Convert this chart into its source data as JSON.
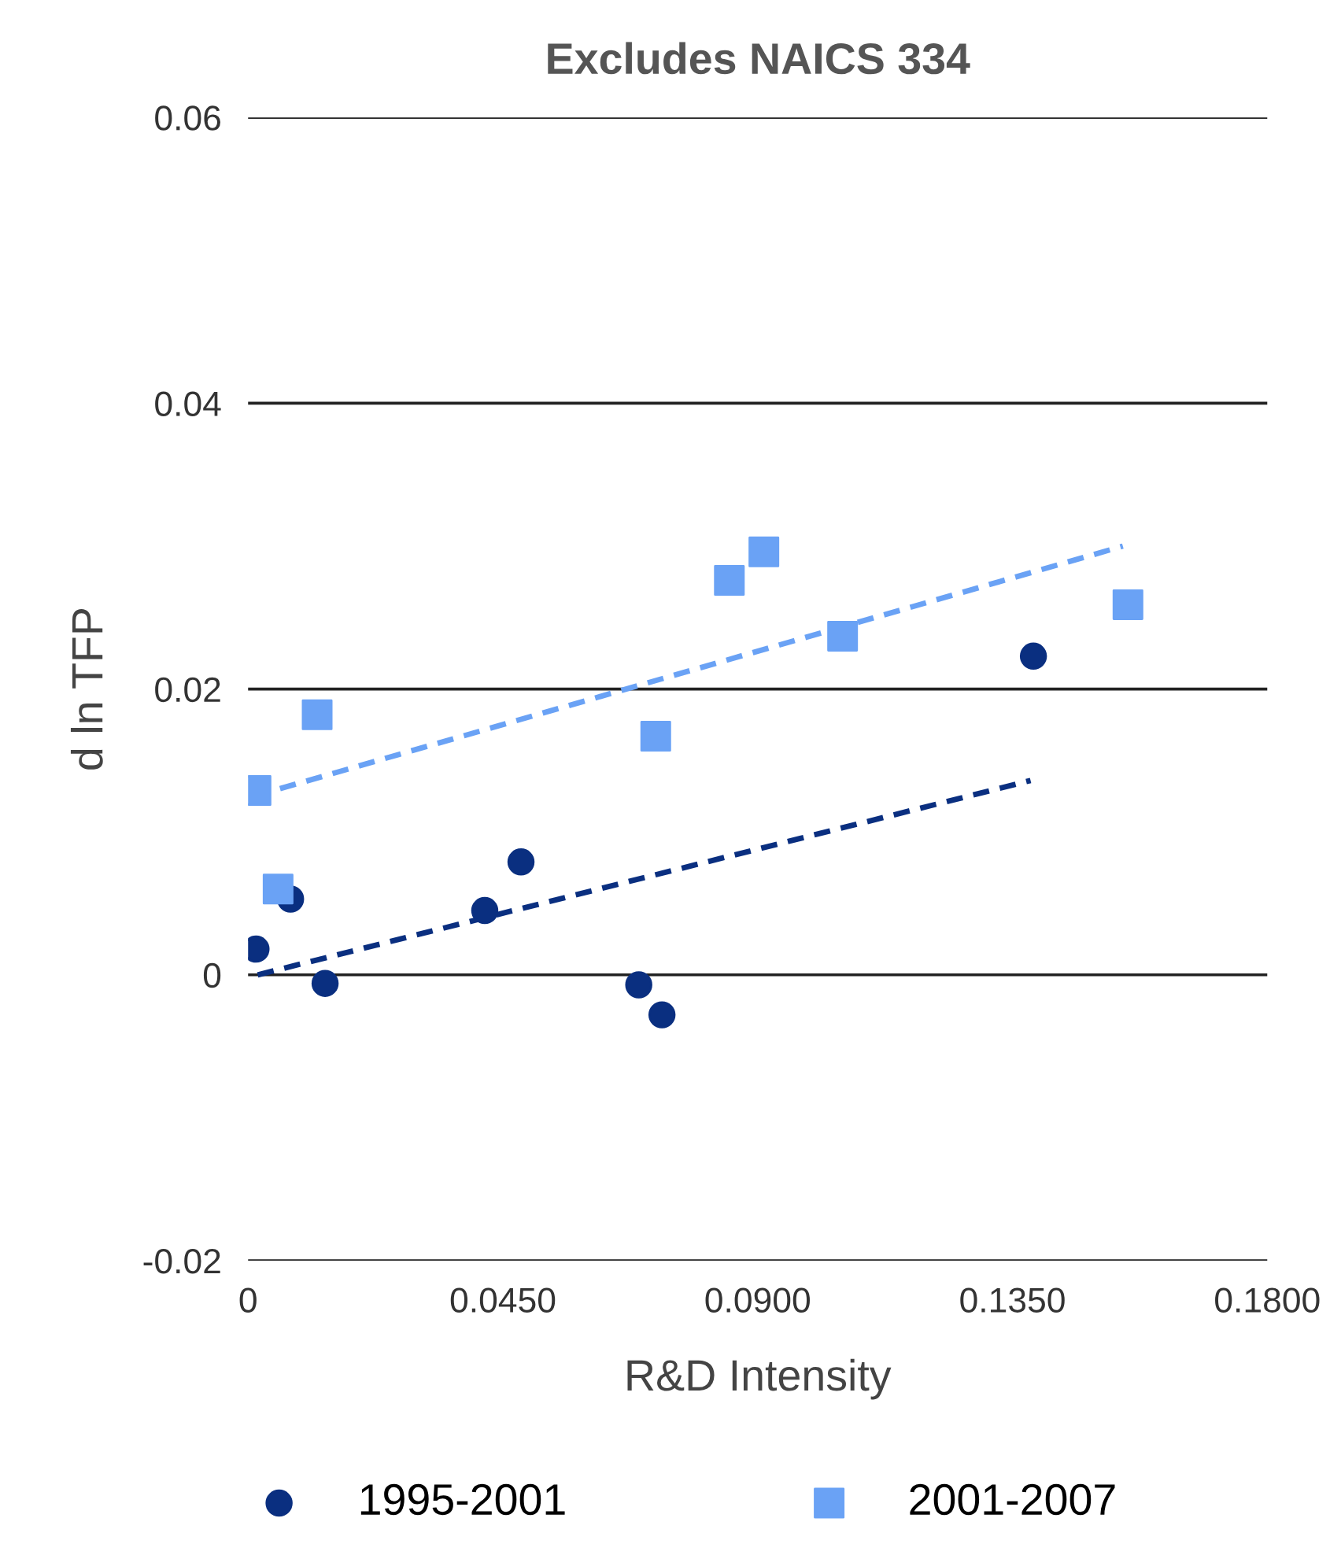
{
  "chart_data": {
    "type": "scatter",
    "title": "Excludes NAICS 334",
    "xlabel": "R&D Intensity",
    "ylabel": "d ln TFP",
    "xlim": [
      0,
      0.18
    ],
    "xticks": [
      {
        "value": 0,
        "label": "0"
      },
      {
        "value": 0.045,
        "label": "0.0450"
      },
      {
        "value": 0.09,
        "label": "0.0900"
      },
      {
        "value": 0.135,
        "label": "0.1350"
      },
      {
        "value": 0.18,
        "label": "0.1800"
      }
    ],
    "ylim": [
      -0.02,
      0.06
    ],
    "yticks": [
      -0.02,
      0,
      0.02,
      0.04,
      0.06
    ],
    "grid": "y",
    "legend": "bottom",
    "series": [
      {
        "name": "1995-2001",
        "color": "#0a2f80",
        "marker": "circle",
        "x": [
          0.0014,
          0.0075,
          0.0136,
          0.0418,
          0.0482,
          0.069,
          0.0731,
          0.1387
        ],
        "values": [
          0.0018,
          0.0053,
          -0.0006,
          0.0045,
          0.0079,
          -0.0007,
          -0.0028,
          0.0223
        ]
      },
      {
        "name": "2001-2007",
        "color": "#6aa2f5",
        "marker": "square",
        "x": [
          0.0014,
          0.0053,
          0.0122,
          0.072,
          0.085,
          0.0911,
          0.105,
          0.1554
        ],
        "values": [
          0.0129,
          0.006,
          0.0182,
          0.0167,
          0.0276,
          0.0296,
          0.0237,
          0.0259
        ]
      },
      {
        "type": "line",
        "color": "#0a2f80",
        "line_style": "dashed",
        "marker": "none",
        "x": [
          0.0017,
          0.1382
        ],
        "values": [
          0.0,
          0.0136
        ]
      },
      {
        "type": "line",
        "color": "#6aa2f5",
        "line_style": "dashed",
        "marker": "none",
        "x": [
          0.001,
          0.1545
        ],
        "values": [
          0.0125,
          0.03
        ]
      }
    ]
  }
}
